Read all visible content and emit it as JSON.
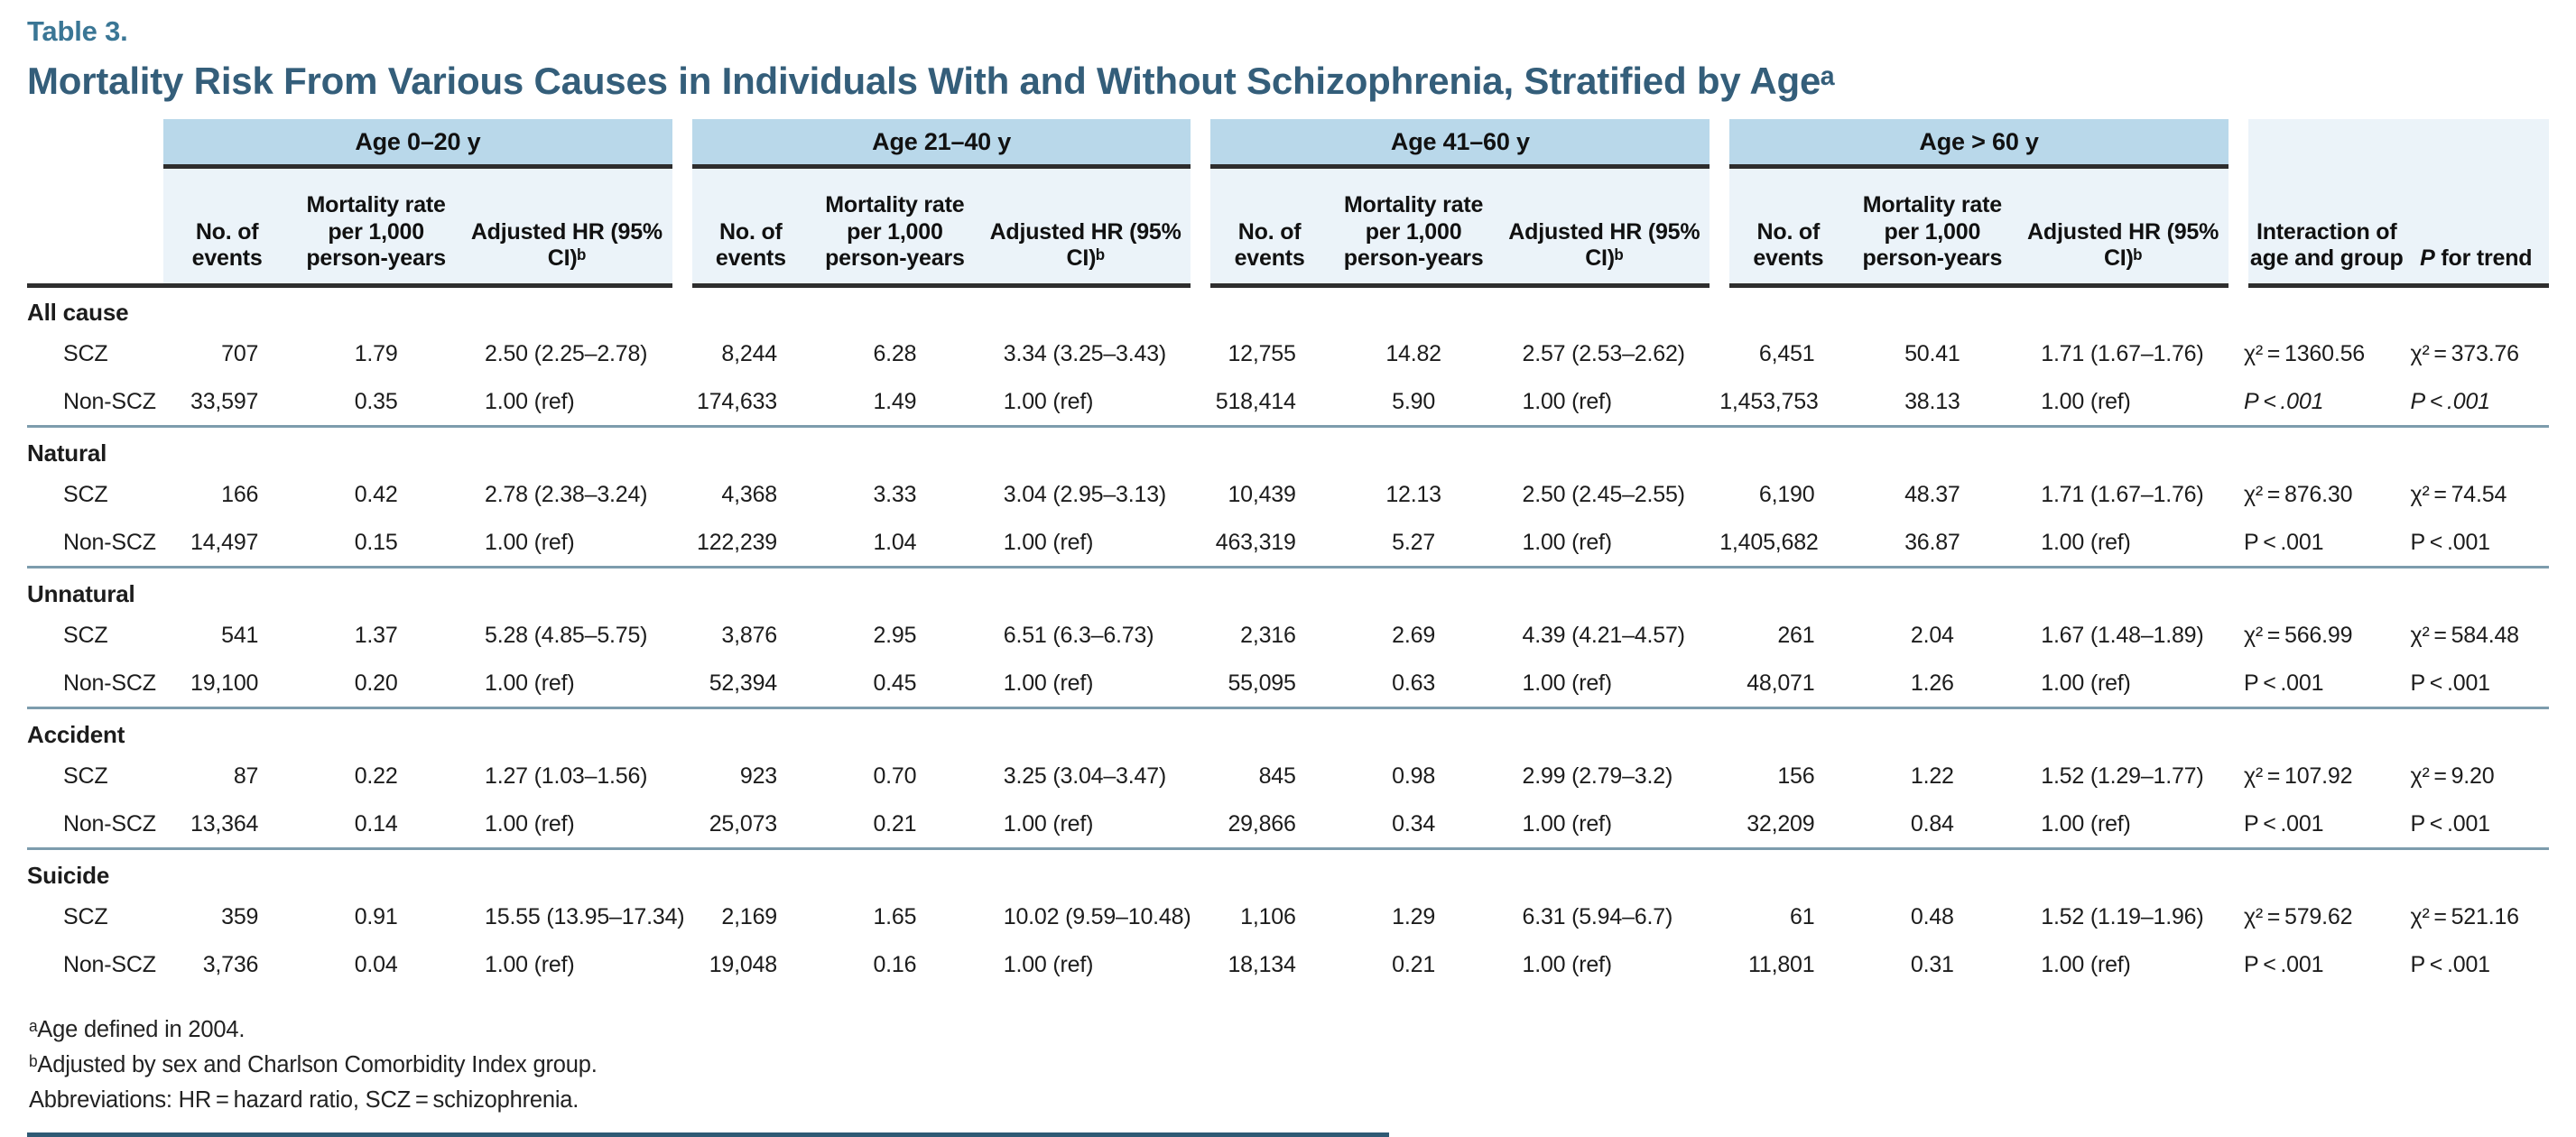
{
  "title": {
    "label": "Table 3.",
    "heading": "Mortality Risk From Various Causes in Individuals With and Without Schizophrenia, Stratified by Ageᵃ"
  },
  "table": {
    "age_groups": [
      "Age 0–20 y",
      "Age 21–40 y",
      "Age 41–60 y",
      "Age > 60 y"
    ],
    "subheaders": {
      "events": "No. of events",
      "rate": "Mortality rate per 1,000 person-years",
      "hr": "Adjusted HR (95% CI)ᵇ"
    },
    "interaction_header": "Interaction of age and group",
    "p_trend_header_p": "P",
    "p_trend_header_rest": " for trend",
    "sections": [
      {
        "label": "All cause",
        "p_italic": true,
        "rows": [
          {
            "group": "SCZ",
            "values": [
              "707",
              "1.79",
              "2.50 (2.25–2.78)",
              "8,244",
              "6.28",
              "3.34 (3.25–3.43)",
              "12,755",
              "14.82",
              "2.57 (2.53–2.62)",
              "6,451",
              "50.41",
              "1.71 (1.67–1.76)"
            ],
            "interaction": "χ² = 1360.56",
            "p_trend": "χ² = 373.76"
          },
          {
            "group": "Non-SCZ",
            "values": [
              "33,597",
              "0.35",
              "1.00 (ref)",
              "174,633",
              "1.49",
              "1.00 (ref)",
              "518,414",
              "5.90",
              "1.00 (ref)",
              "1,453,753",
              "38.13",
              "1.00 (ref)"
            ],
            "interaction": "P < .001",
            "p_trend": "P < .001"
          }
        ]
      },
      {
        "label": "Natural",
        "p_italic": false,
        "rows": [
          {
            "group": "SCZ",
            "values": [
              "166",
              "0.42",
              "2.78 (2.38–3.24)",
              "4,368",
              "3.33",
              "3.04 (2.95–3.13)",
              "10,439",
              "12.13",
              "2.50 (2.45–2.55)",
              "6,190",
              "48.37",
              "1.71 (1.67–1.76)"
            ],
            "interaction": "χ² = 876.30",
            "p_trend": "χ² = 74.54"
          },
          {
            "group": "Non-SCZ",
            "values": [
              "14,497",
              "0.15",
              "1.00 (ref)",
              "122,239",
              "1.04",
              "1.00 (ref)",
              "463,319",
              "5.27",
              "1.00 (ref)",
              "1,405,682",
              "36.87",
              "1.00 (ref)"
            ],
            "interaction": "P < .001",
            "p_trend": "P < .001"
          }
        ]
      },
      {
        "label": "Unnatural",
        "p_italic": false,
        "rows": [
          {
            "group": "SCZ",
            "values": [
              "541",
              "1.37",
              "5.28 (4.85–5.75)",
              "3,876",
              "2.95",
              "6.51 (6.3–6.73)",
              "2,316",
              "2.69",
              "4.39 (4.21–4.57)",
              "261",
              "2.04",
              "1.67 (1.48–1.89)"
            ],
            "interaction": "χ² = 566.99",
            "p_trend": "χ² = 584.48"
          },
          {
            "group": "Non-SCZ",
            "values": [
              "19,100",
              "0.20",
              "1.00 (ref)",
              "52,394",
              "0.45",
              "1.00 (ref)",
              "55,095",
              "0.63",
              "1.00 (ref)",
              "48,071",
              "1.26",
              "1.00 (ref)"
            ],
            "interaction": "P < .001",
            "p_trend": "P < .001"
          }
        ]
      },
      {
        "label": "Accident",
        "p_italic": false,
        "rows": [
          {
            "group": "SCZ",
            "values": [
              "87",
              "0.22",
              "1.27 (1.03–1.56)",
              "923",
              "0.70",
              "3.25 (3.04–3.47)",
              "845",
              "0.98",
              "2.99 (2.79–3.2)",
              "156",
              "1.22",
              "1.52 (1.29–1.77)"
            ],
            "interaction": "χ² = 107.92",
            "p_trend": "χ² = 9.20"
          },
          {
            "group": "Non-SCZ",
            "values": [
              "13,364",
              "0.14",
              "1.00 (ref)",
              "25,073",
              "0.21",
              "1.00 (ref)",
              "29,866",
              "0.34",
              "1.00 (ref)",
              "32,209",
              "0.84",
              "1.00 (ref)"
            ],
            "interaction": "P < .001",
            "p_trend": "P < .001"
          }
        ]
      },
      {
        "label": "Suicide",
        "p_italic": false,
        "rows": [
          {
            "group": "SCZ",
            "values": [
              "359",
              "0.91",
              "15.55 (13.95–17.34)",
              "2,169",
              "1.65",
              "10.02 (9.59–10.48)",
              "1,106",
              "1.29",
              "6.31 (5.94–6.7)",
              "61",
              "0.48",
              "1.52 (1.19–1.96)"
            ],
            "interaction": "χ² = 579.62",
            "p_trend": "χ² = 521.16"
          },
          {
            "group": "Non-SCZ",
            "values": [
              "3,736",
              "0.04",
              "1.00 (ref)",
              "19,048",
              "0.16",
              "1.00 (ref)",
              "18,134",
              "0.21",
              "1.00 (ref)",
              "11,801",
              "0.31",
              "1.00 (ref)"
            ],
            "interaction": "P < .001",
            "p_trend": "P < .001"
          }
        ]
      }
    ]
  },
  "footnotes": [
    "ᵃAge defined in 2004.",
    "ᵇAdjusted by sex and Charlson Comorbidity Index group.",
    "Abbreviations: HR = hazard ratio, SCZ = schizophrenia."
  ]
}
